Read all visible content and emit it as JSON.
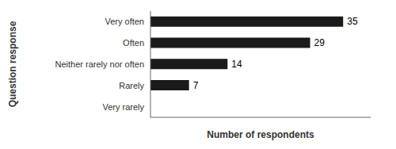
{
  "chart_data": {
    "type": "bar",
    "orientation": "horizontal",
    "categories": [
      "Very often",
      "Often",
      "Neither rarely nor often",
      "Rarely",
      "Very rarely"
    ],
    "values": [
      35,
      29,
      14,
      7,
      0
    ],
    "color": "#1a1a1a",
    "xlabel": "Number of respondents",
    "ylabel": "Question response",
    "xlim": [
      0,
      40
    ],
    "data_labels": true,
    "tick_labels": "y",
    "grid": false
  }
}
